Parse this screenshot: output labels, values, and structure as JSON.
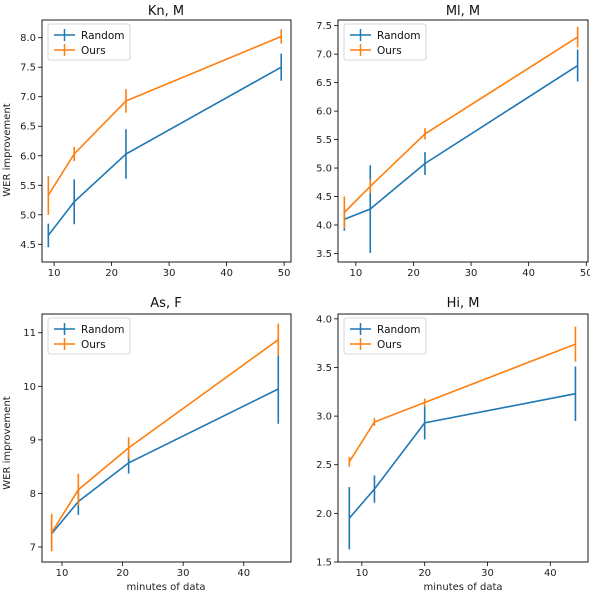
{
  "chart_data": [
    {
      "type": "line",
      "title": "Kn, M",
      "xlabel": "",
      "ylabel": "WER improvement",
      "xlim": [
        7.9,
        51.2
      ],
      "ylim": [
        4.2,
        8.3
      ],
      "xticks": [
        10,
        20,
        30,
        40,
        50
      ],
      "yticks": [
        4.5,
        5.0,
        5.5,
        6.0,
        6.5,
        7.0,
        7.5,
        8.0
      ],
      "ytick_format": 1,
      "legend": "top-left",
      "series": [
        {
          "name": "Random",
          "color": "#1f77b4",
          "x": [
            9,
            13.5,
            22.5,
            49.5
          ],
          "y": [
            4.65,
            5.22,
            6.03,
            7.5
          ],
          "err": [
            0.2,
            0.38,
            0.42,
            0.23
          ]
        },
        {
          "name": "Ours",
          "color": "#ff7f0e",
          "x": [
            9,
            13.5,
            22.5,
            49.5
          ],
          "y": [
            5.33,
            6.03,
            6.93,
            8.02
          ],
          "err": [
            0.33,
            0.12,
            0.2,
            0.12
          ]
        }
      ]
    },
    {
      "type": "line",
      "title": "Ml, M",
      "xlabel": "",
      "ylabel": "",
      "xlim": [
        6.9,
        50.3
      ],
      "ylim": [
        3.35,
        7.6
      ],
      "xticks": [
        10,
        20,
        30,
        40,
        50
      ],
      "yticks": [
        3.5,
        4.0,
        4.5,
        5.0,
        5.5,
        6.0,
        6.5,
        7.0,
        7.5
      ],
      "ytick_format": 1,
      "legend": "top-left",
      "series": [
        {
          "name": "Random",
          "color": "#1f77b4",
          "x": [
            8,
            12.5,
            22,
            48.5
          ],
          "y": [
            4.1,
            4.28,
            5.08,
            6.8
          ],
          "err": [
            0.2,
            0.77,
            0.2,
            0.28
          ]
        },
        {
          "name": "Ours",
          "color": "#ff7f0e",
          "x": [
            8,
            12.5,
            22,
            48.5
          ],
          "y": [
            4.22,
            4.68,
            5.6,
            7.3
          ],
          "err": [
            0.28,
            0.12,
            0.1,
            0.18
          ]
        }
      ]
    },
    {
      "type": "line",
      "title": "As, F",
      "xlabel": "minutes of data",
      "ylabel": "WER improvement",
      "xlim": [
        6.7,
        47.8
      ],
      "ylim": [
        6.72,
        11.35
      ],
      "xticks": [
        10,
        20,
        30,
        40
      ],
      "yticks": [
        7,
        8,
        9,
        10,
        11
      ],
      "ytick_format": 0,
      "legend": "top-left",
      "series": [
        {
          "name": "Random",
          "color": "#1f77b4",
          "x": [
            8.3,
            12.7,
            21,
            45.7
          ],
          "y": [
            7.25,
            7.85,
            8.57,
            9.95
          ],
          "err": [
            0.32,
            0.25,
            0.2,
            0.65
          ]
        },
        {
          "name": "Ours",
          "color": "#ff7f0e",
          "x": [
            8.3,
            12.7,
            21,
            45.7
          ],
          "y": [
            7.27,
            8.07,
            8.85,
            10.87
          ],
          "err": [
            0.35,
            0.3,
            0.2,
            0.3
          ]
        }
      ]
    },
    {
      "type": "line",
      "title": "Hi, M",
      "xlabel": "minutes of data",
      "ylabel": "",
      "xlim": [
        6.2,
        46.0
      ],
      "ylim": [
        1.5,
        4.05
      ],
      "xticks": [
        10,
        20,
        30,
        40
      ],
      "yticks": [
        1.5,
        2.0,
        2.5,
        3.0,
        3.5,
        4.0
      ],
      "ytick_format": 1,
      "legend": "top-left",
      "series": [
        {
          "name": "Random",
          "color": "#1f77b4",
          "x": [
            8,
            12,
            20,
            44
          ],
          "y": [
            1.95,
            2.25,
            2.93,
            3.23
          ],
          "err": [
            0.32,
            0.14,
            0.17,
            0.28
          ]
        },
        {
          "name": "Ours",
          "color": "#ff7f0e",
          "x": [
            8,
            12,
            20,
            44
          ],
          "y": [
            2.53,
            2.94,
            3.14,
            3.74
          ],
          "err": [
            0.05,
            0.04,
            0.04,
            0.18
          ]
        }
      ]
    }
  ]
}
